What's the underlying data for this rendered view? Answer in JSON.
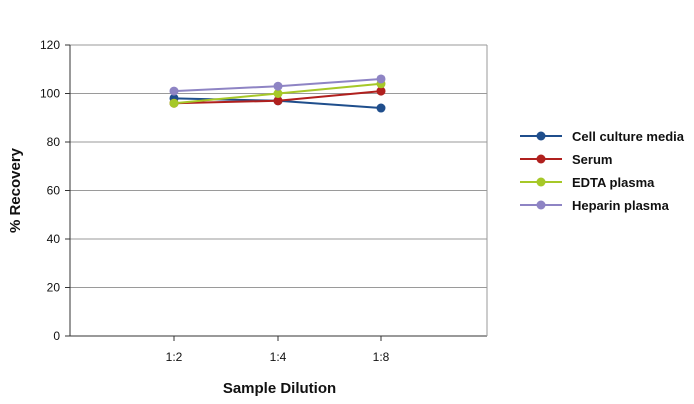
{
  "chart_data": {
    "type": "line",
    "categories": [
      "1:2",
      "1:4",
      "1:8"
    ],
    "xlabel": "Sample Dilution",
    "ylabel": "% Recovery",
    "ylim": [
      0,
      120
    ],
    "yticks": [
      0,
      20,
      40,
      60,
      80,
      100,
      120
    ],
    "grid": true,
    "legend_position": "right",
    "series": [
      {
        "name": "Cell culture media",
        "color": "#1f4e8c",
        "values": [
          98,
          97,
          94
        ]
      },
      {
        "name": "Serum",
        "color": "#b0201e",
        "values": [
          96,
          97,
          101
        ]
      },
      {
        "name": "EDTA plasma",
        "color": "#a6c828",
        "values": [
          96,
          100,
          104
        ]
      },
      {
        "name": "Heparin plasma",
        "color": "#8e84c4",
        "values": [
          101,
          103,
          106
        ]
      }
    ]
  }
}
